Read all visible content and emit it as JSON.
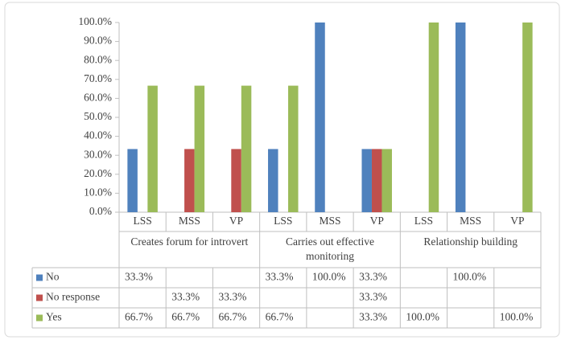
{
  "chart_data": {
    "type": "bar",
    "groups": [
      {
        "name": "Creates forum for introvert",
        "categories": [
          "LSS",
          "MSS",
          "VP"
        ]
      },
      {
        "name": "Carries out effective monitoring",
        "categories": [
          "LSS",
          "MSS",
          "VP"
        ]
      },
      {
        "name": "Relationship building",
        "categories": [
          "LSS",
          "MSS",
          "VP"
        ]
      }
    ],
    "series": [
      {
        "name": "No",
        "color": "#4f81bd",
        "values": [
          33.3,
          null,
          null,
          33.3,
          100,
          33.3,
          null,
          100,
          null
        ],
        "value_labels": [
          "33.3%",
          null,
          null,
          "33.3%",
          "100.0%",
          "33.3%",
          null,
          "100.0%",
          null
        ]
      },
      {
        "name": "No response",
        "color": "#c0504d",
        "values": [
          null,
          33.3,
          33.3,
          null,
          null,
          33.3,
          null,
          null,
          null
        ],
        "value_labels": [
          null,
          "33.3%",
          "33.3%",
          null,
          null,
          "33.3%",
          null,
          null,
          null
        ]
      },
      {
        "name": "Yes",
        "color": "#9bbb59",
        "values": [
          66.7,
          66.7,
          66.7,
          66.7,
          null,
          33.3,
          100,
          null,
          100
        ],
        "value_labels": [
          "66.7%",
          "66.7%",
          "66.7%",
          "66.7%",
          null,
          "33.3%",
          "100.0%",
          null,
          "100.0%"
        ]
      }
    ],
    "ylim": [
      0,
      100
    ],
    "yticks": [
      {
        "value": 0,
        "label": "0.0%"
      },
      {
        "value": 10,
        "label": "10.0%"
      },
      {
        "value": 20,
        "label": "20.0%"
      },
      {
        "value": 30,
        "label": "30.0%"
      },
      {
        "value": 40,
        "label": "40.0%"
      },
      {
        "value": 50,
        "label": "50.0%"
      },
      {
        "value": 60,
        "label": "60.0%"
      },
      {
        "value": 70,
        "label": "70.0%"
      },
      {
        "value": 80,
        "label": "80.0%"
      },
      {
        "value": 90,
        "label": "90.0%"
      },
      {
        "value": 100,
        "label": "100.0%"
      }
    ],
    "grid": false
  }
}
